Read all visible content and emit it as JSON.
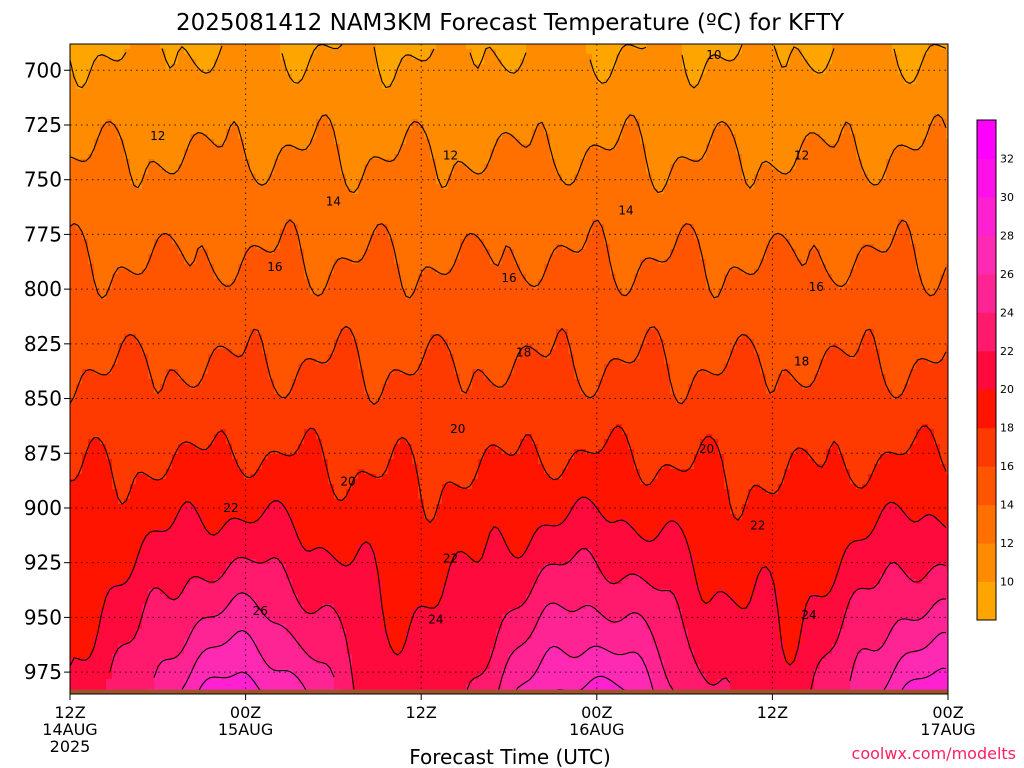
{
  "title": "2025081412 NAM3KM Forecast Temperature (ºC) for KFTY",
  "credit": "coolwx.com/modelts",
  "chart_data": {
    "type": "contour",
    "title": "2025081412 NAM3KM Forecast Temperature (ºC) for KFTY",
    "xlabel": "Forecast Time (UTC)",
    "ylabel": "",
    "x_ticks": [
      {
        "hour": 0,
        "line1": "12Z",
        "line2": "14AUG",
        "line3": "2025"
      },
      {
        "hour": 12,
        "line1": "00Z",
        "line2": "15AUG",
        "line3": ""
      },
      {
        "hour": 24,
        "line1": "12Z",
        "line2": "",
        "line3": ""
      },
      {
        "hour": 36,
        "line1": "00Z",
        "line2": "16AUG",
        "line3": ""
      },
      {
        "hour": 48,
        "line1": "12Z",
        "line2": "",
        "line3": ""
      },
      {
        "hour": 60,
        "line1": "00Z",
        "line2": "17AUG",
        "line3": ""
      }
    ],
    "xlim_hours": [
      0,
      60
    ],
    "y_ticks": [
      "700",
      "725",
      "750",
      "775",
      "800",
      "825",
      "850",
      "875",
      "900",
      "925",
      "950",
      "975"
    ],
    "y_tick_values": [
      700,
      725,
      750,
      775,
      800,
      825,
      850,
      875,
      900,
      925,
      950,
      975
    ],
    "ylim_hpa": [
      688,
      985
    ],
    "grid": "dotted horizontal at pressure ticks, vertical at 00Z/12Z",
    "legend": "colorbar right",
    "colorbar": {
      "labels": [
        "10",
        "12",
        "14",
        "16",
        "18",
        "20",
        "22",
        "24",
        "26",
        "28",
        "30",
        "32"
      ],
      "values": [
        10,
        12,
        14,
        16,
        18,
        20,
        22,
        24,
        26,
        28,
        30,
        32
      ],
      "colors": [
        "#ffa500",
        "#ff8c00",
        "#ff7000",
        "#ff5500",
        "#ff3a00",
        "#ff1400",
        "#ff0a3c",
        "#ff1a6e",
        "#ff2494",
        "#ff2ab4",
        "#ff20d2",
        "#ff10e8",
        "#ff00ff"
      ]
    },
    "contour_levels": [
      10,
      12,
      14,
      16,
      18,
      20,
      22,
      24,
      26,
      28,
      30
    ],
    "contour_labels": [
      {
        "text": "10",
        "hour": 44.0,
        "p": 693
      },
      {
        "text": "12",
        "hour": 6.0,
        "p": 730
      },
      {
        "text": "12",
        "hour": 26.0,
        "p": 739
      },
      {
        "text": "12",
        "hour": 50.0,
        "p": 739
      },
      {
        "text": "14",
        "hour": 18.0,
        "p": 760
      },
      {
        "text": "14",
        "hour": 38.0,
        "p": 764
      },
      {
        "text": "16",
        "hour": 14.0,
        "p": 790
      },
      {
        "text": "16",
        "hour": 30.0,
        "p": 795
      },
      {
        "text": "16",
        "hour": 51.0,
        "p": 799
      },
      {
        "text": "18",
        "hour": 31.0,
        "p": 829
      },
      {
        "text": "18",
        "hour": 50.0,
        "p": 833
      },
      {
        "text": "20",
        "hour": 26.5,
        "p": 864
      },
      {
        "text": "20",
        "hour": 19.0,
        "p": 888
      },
      {
        "text": "20",
        "hour": 43.5,
        "p": 873
      },
      {
        "text": "22",
        "hour": 11.0,
        "p": 900
      },
      {
        "text": "22",
        "hour": 26.0,
        "p": 923
      },
      {
        "text": "22",
        "hour": 47.0,
        "p": 908
      },
      {
        "text": "24",
        "hour": 25.0,
        "p": 951
      },
      {
        "text": "24",
        "hour": 50.5,
        "p": 949
      },
      {
        "text": "26",
        "hour": 13.0,
        "p": 947
      }
    ],
    "surface_hpa": 983
  }
}
